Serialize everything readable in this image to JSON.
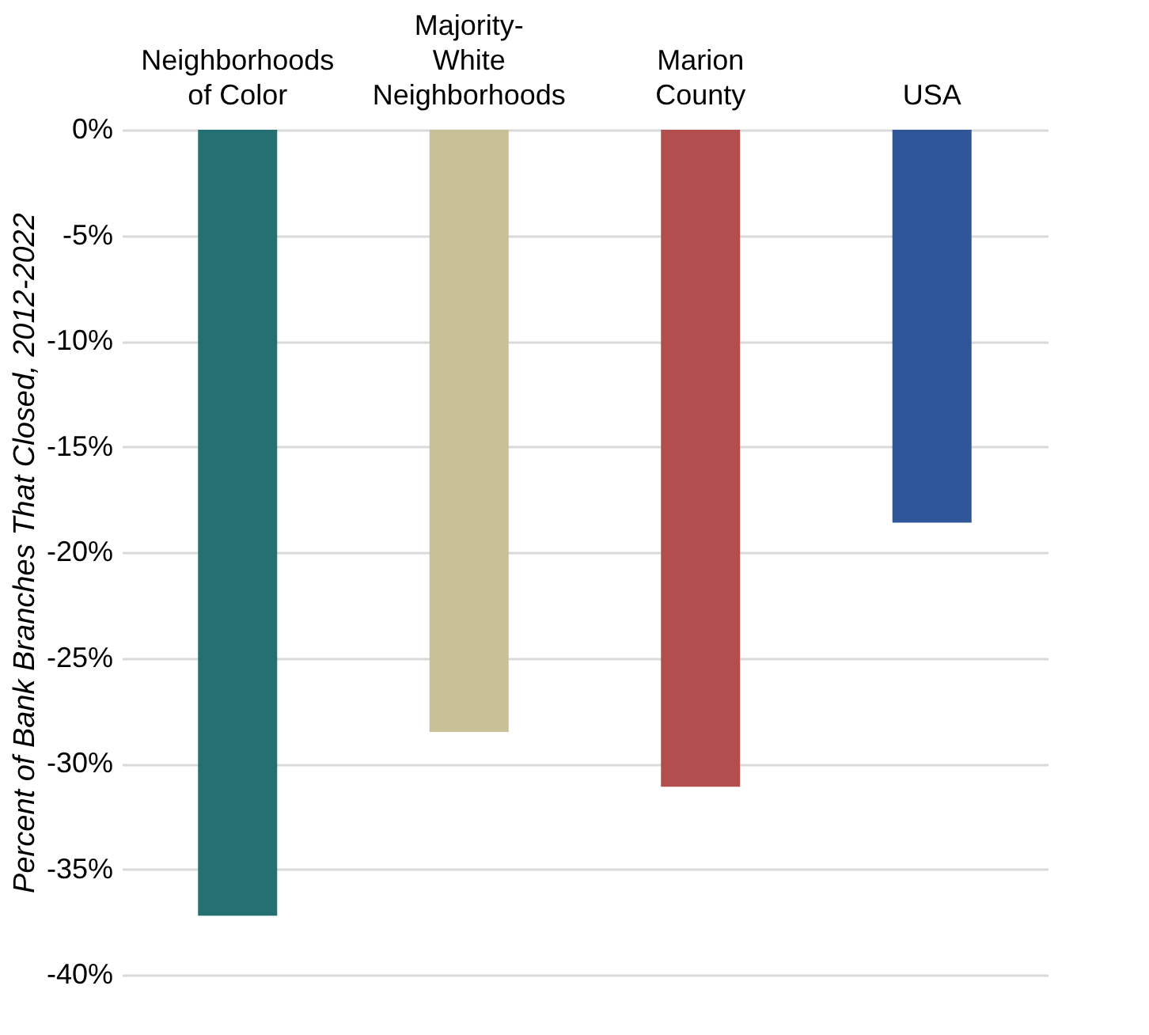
{
  "chart_data": {
    "type": "bar",
    "ylabel": "Percent of Bank Branches That Closed, 2012-2022",
    "categories": [
      "Neighborhoods of Color",
      "Majority-White Neighborhoods",
      "Marion County",
      "USA"
    ],
    "values": [
      -37.2,
      -28.5,
      -31.1,
      -18.6
    ],
    "colors": [
      "#247072",
      "#c8c096",
      "#b34e4e",
      "#2e5698"
    ],
    "ylim": [
      -40,
      0
    ],
    "yticks": [
      {
        "value": 0,
        "label": "0%"
      },
      {
        "value": -5,
        "label": "-5%"
      },
      {
        "value": -10,
        "label": "-10%"
      },
      {
        "value": -15,
        "label": "-15%"
      },
      {
        "value": -20,
        "label": "-20%"
      },
      {
        "value": -25,
        "label": "-25%"
      },
      {
        "value": -30,
        "label": "-30%"
      },
      {
        "value": -35,
        "label": "-35%"
      },
      {
        "value": -40,
        "label": "-40%"
      }
    ],
    "grid": "y"
  }
}
